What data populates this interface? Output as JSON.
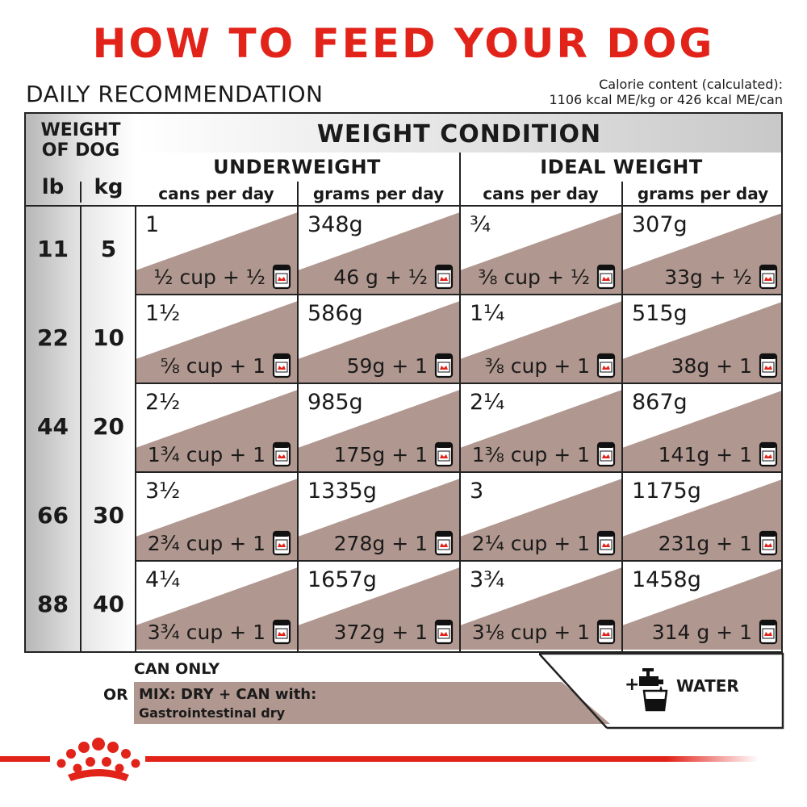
{
  "header": {
    "title": "HOW TO FEED YOUR DOG",
    "daily": "DAILY RECOMMENDATION",
    "calorie_line1": "Calorie content (calculated):",
    "calorie_line2": "1106 kcal ME/kg or 426 kcal ME/can"
  },
  "table": {
    "weight_title_line1": "WEIGHT",
    "weight_title_line2": "OF DOG",
    "unit_lb": "lb",
    "unit_kg": "kg",
    "condition_title": "WEIGHT CONDITION",
    "groups": [
      "UNDERWEIGHT",
      "IDEAL WEIGHT"
    ],
    "subheaders": [
      "cans per day",
      "grams per day",
      "cans per day",
      "grams per day"
    ],
    "rows": [
      {
        "lb": "11",
        "kg": "5",
        "cells": [
          {
            "amount": "1",
            "mix": "½ cup + ½"
          },
          {
            "amount": "348g",
            "mix": "46 g + ½"
          },
          {
            "amount": "¾",
            "mix": "⅜ cup + ½"
          },
          {
            "amount": "307g",
            "mix": "33g + ½"
          }
        ]
      },
      {
        "lb": "22",
        "kg": "10",
        "cells": [
          {
            "amount": "1½",
            "mix": "⅝ cup + 1"
          },
          {
            "amount": "586g",
            "mix": "59g + 1"
          },
          {
            "amount": "1¼",
            "mix": "⅜ cup + 1"
          },
          {
            "amount": "515g",
            "mix": "38g + 1"
          }
        ]
      },
      {
        "lb": "44",
        "kg": "20",
        "cells": [
          {
            "amount": "2½",
            "mix": "1¾ cup + 1"
          },
          {
            "amount": "985g",
            "mix": "175g + 1"
          },
          {
            "amount": "2¼",
            "mix": "1⅜ cup + 1"
          },
          {
            "amount": "867g",
            "mix": "141g + 1"
          }
        ]
      },
      {
        "lb": "66",
        "kg": "30",
        "cells": [
          {
            "amount": "3½",
            "mix": "2¾ cup + 1"
          },
          {
            "amount": "1335g",
            "mix": "278g + 1"
          },
          {
            "amount": "3",
            "mix": "2¼ cup + 1"
          },
          {
            "amount": "1175g",
            "mix": "231g + 1"
          }
        ]
      },
      {
        "lb": "88",
        "kg": "40",
        "cells": [
          {
            "amount": "4¼",
            "mix": "3¾ cup + 1"
          },
          {
            "amount": "1657g",
            "mix": "372g + 1"
          },
          {
            "amount": "3¾",
            "mix": "3⅛ cup + 1"
          },
          {
            "amount": "1458g",
            "mix": "314 g + 1"
          }
        ]
      }
    ]
  },
  "footer": {
    "can_only": "CAN ONLY",
    "or": "OR",
    "mix_line1": "MIX: DRY + CAN with:",
    "mix_line2": "Gastrointestinal dry",
    "plus": "+",
    "water": "WATER"
  },
  "colors": {
    "brand_red": "#e2231a",
    "mix_band": "#b0978f"
  },
  "icons": [
    "can-icon",
    "water-tap-icon",
    "royal-canin-crown-icon"
  ]
}
